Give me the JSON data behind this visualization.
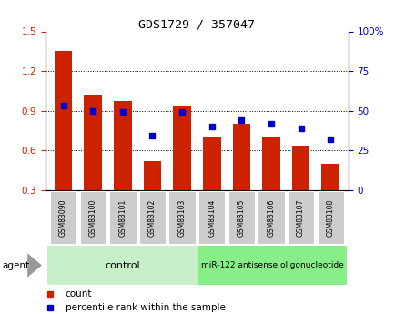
{
  "title": "GDS1729 / 357047",
  "categories": [
    "GSM83090",
    "GSM83100",
    "GSM83101",
    "GSM83102",
    "GSM83103",
    "GSM83104",
    "GSM83105",
    "GSM83106",
    "GSM83107",
    "GSM83108"
  ],
  "count_values": [
    1.35,
    1.02,
    0.97,
    0.52,
    0.93,
    0.7,
    0.8,
    0.7,
    0.635,
    0.5
  ],
  "percentile_values": [
    53,
    50,
    49,
    34,
    49,
    40,
    44,
    42,
    39,
    32
  ],
  "bar_color": "#cc2200",
  "dot_color": "#0000cc",
  "ylim_left": [
    0.3,
    1.5
  ],
  "ylim_right": [
    0,
    100
  ],
  "yticks_left": [
    0.3,
    0.6,
    0.9,
    1.2,
    1.5
  ],
  "yticks_right": [
    0,
    25,
    50,
    75,
    100
  ],
  "grid_values": [
    0.6,
    0.9,
    1.2
  ],
  "control_label": "control",
  "treatment_label": "miR-122 antisense oligonucleotide",
  "agent_label": "agent",
  "legend_count": "count",
  "legend_percentile": "percentile rank within the sample",
  "tick_color_left": "#cc2200",
  "tick_color_right": "#0000cc",
  "tick_label_bg": "#cccccc",
  "control_bg": "#c8f0c8",
  "treatment_bg": "#88ee88",
  "bar_width": 0.6
}
